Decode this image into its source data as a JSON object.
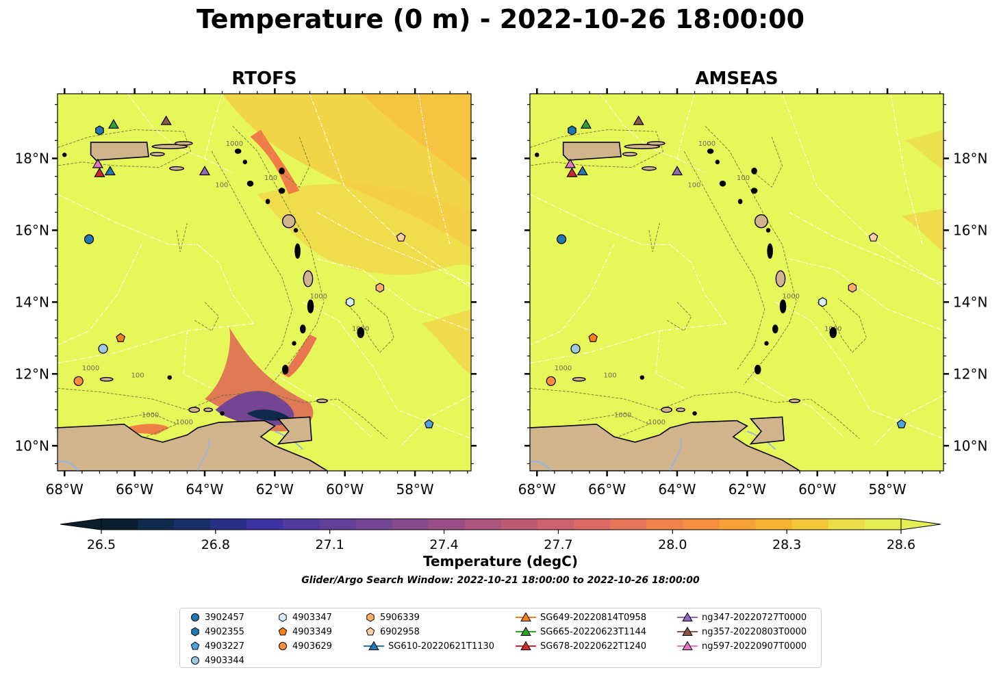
{
  "figure": {
    "title": "Temperature (0 m) - 2022-10-26 18:00:00",
    "search_window": "Glider/Argo Search Window: 2022-10-21 18:00:00 to 2022-10-26 18:00:00"
  },
  "panels": [
    {
      "id": "rtofs",
      "title": "RTOFS"
    },
    {
      "id": "amseas",
      "title": "AMSEAS"
    }
  ],
  "axes": {
    "lon_range": [
      -68.2,
      -56.4
    ],
    "lat_range": [
      9.3,
      19.8
    ],
    "lon_ticks": [
      {
        "value": -68,
        "label": "68°W"
      },
      {
        "value": -66,
        "label": "66°W"
      },
      {
        "value": -64,
        "label": "64°W"
      },
      {
        "value": -62,
        "label": "62°W"
      },
      {
        "value": -60,
        "label": "60°W"
      },
      {
        "value": -58,
        "label": "58°W"
      }
    ],
    "lat_ticks": [
      {
        "value": 10,
        "label": "10°N"
      },
      {
        "value": 12,
        "label": "12°N"
      },
      {
        "value": 14,
        "label": "14°N"
      },
      {
        "value": 16,
        "label": "16°N"
      },
      {
        "value": 18,
        "label": "18°N"
      }
    ]
  },
  "colorbar": {
    "label": "Temperature (degC)",
    "min": 26.5,
    "max": 28.6,
    "ticks": [
      "26.5",
      "26.8",
      "27.1",
      "27.4",
      "27.7",
      "28.0",
      "28.3",
      "28.6"
    ],
    "colors": [
      "#0a1f2e",
      "#0f2a4a",
      "#1a2e68",
      "#2a2f86",
      "#3d33a0",
      "#503a9e",
      "#623f98",
      "#744592",
      "#874b8c",
      "#994f86",
      "#ab557f",
      "#bd5b77",
      "#cc626e",
      "#da6a63",
      "#e77557",
      "#f0824b",
      "#f59040",
      "#f8a138",
      "#f7b434",
      "#f2c83a",
      "#ecdc47",
      "#e6ee55"
    ]
  },
  "colors": {
    "ocean_base": "#e6f75a",
    "land": "#d2b48c",
    "orange_warm": "#f9b13a",
    "orange_light": "#f5c842",
    "contour": "#5a6a3a",
    "eez_line": "#ffffff",
    "river": "#9bb5d6"
  },
  "contour_labels": [
    "1000",
    "100",
    "-1000"
  ],
  "legend": {
    "items": [
      {
        "label": "3902457",
        "marker": "circle",
        "color": "#1f77b4"
      },
      {
        "label": "4902355",
        "marker": "hexagon",
        "color": "#1f77b4"
      },
      {
        "label": "4903227",
        "marker": "pentagon",
        "color": "#4fa3dc"
      },
      {
        "label": "4903344",
        "marker": "circle",
        "color": "#9ecae1"
      },
      {
        "label": "4903347",
        "marker": "hexagon",
        "color": "#d6ecfa"
      },
      {
        "label": "4903349",
        "marker": "pentagon",
        "color": "#ff7f0e"
      },
      {
        "label": "4903629",
        "marker": "circle",
        "color": "#fd8d3c"
      },
      {
        "label": "5906339",
        "marker": "hexagon",
        "color": "#fdae6b"
      },
      {
        "label": "6902958",
        "marker": "pentagon",
        "color": "#fdd0a2"
      },
      {
        "label": "SG610-20220621T1130",
        "marker": "triangle-line",
        "color": "#1f77b4"
      },
      {
        "label": "SG649-20220814T0958",
        "marker": "triangle-line",
        "color": "#ff7f0e"
      },
      {
        "label": "SG665-20220623T1144",
        "marker": "triangle-line",
        "color": "#2ca02c"
      },
      {
        "label": "SG678-20220622T1240",
        "marker": "triangle-line",
        "color": "#d62728"
      },
      {
        "label": "ng347-20220727T0000",
        "marker": "triangle-line",
        "color": "#9467bd"
      },
      {
        "label": "ng357-20220803T0000",
        "marker": "triangle-line",
        "color": "#8c564b"
      },
      {
        "label": "ng597-20220907T0000",
        "marker": "triangle-line",
        "color": "#e377c2"
      }
    ]
  },
  "observations": [
    {
      "id": "3902457",
      "lon": -67.3,
      "lat": 15.75,
      "marker": "circle",
      "color": "#1f77b4"
    },
    {
      "id": "4902355",
      "lon": -67.0,
      "lat": 18.78,
      "marker": "hexagon",
      "color": "#1f77b4"
    },
    {
      "id": "4903227",
      "lon": -57.6,
      "lat": 10.6,
      "marker": "pentagon",
      "color": "#4fa3dc"
    },
    {
      "id": "4903344",
      "lon": -66.9,
      "lat": 12.7,
      "marker": "circle",
      "color": "#9ecae1"
    },
    {
      "id": "4903347",
      "lon": -59.85,
      "lat": 14.0,
      "marker": "hexagon",
      "color": "#d6ecfa"
    },
    {
      "id": "4903349",
      "lon": -66.4,
      "lat": 13.0,
      "marker": "pentagon",
      "color": "#ff7f0e"
    },
    {
      "id": "4903629",
      "lon": -67.6,
      "lat": 11.8,
      "marker": "circle",
      "color": "#fd8d3c"
    },
    {
      "id": "5906339",
      "lon": -59.0,
      "lat": 14.4,
      "marker": "hexagon",
      "color": "#fdae6b"
    },
    {
      "id": "6902958",
      "lon": -58.4,
      "lat": 15.8,
      "marker": "pentagon",
      "color": "#fdd0a2"
    },
    {
      "id": "SG610-20220621T1130",
      "lon": -66.7,
      "lat": 17.65,
      "marker": "triangle",
      "color": "#1f77b4"
    },
    {
      "id": "SG665-20220623T1144",
      "lon": -66.6,
      "lat": 18.95,
      "marker": "triangle",
      "color": "#2ca02c"
    },
    {
      "id": "SG678-20220622T1240",
      "lon": -67.0,
      "lat": 17.6,
      "marker": "triangle",
      "color": "#d62728"
    },
    {
      "id": "ng347-20220727T0000",
      "lon": -64.0,
      "lat": 17.65,
      "marker": "triangle",
      "color": "#9467bd"
    },
    {
      "id": "ng357-20220803T0000",
      "lon": -65.1,
      "lat": 19.05,
      "marker": "triangle",
      "color": "#8c564b"
    },
    {
      "id": "ng597-20220907T0000",
      "lon": -67.05,
      "lat": 17.85,
      "marker": "triangle",
      "color": "#e377c2"
    }
  ]
}
